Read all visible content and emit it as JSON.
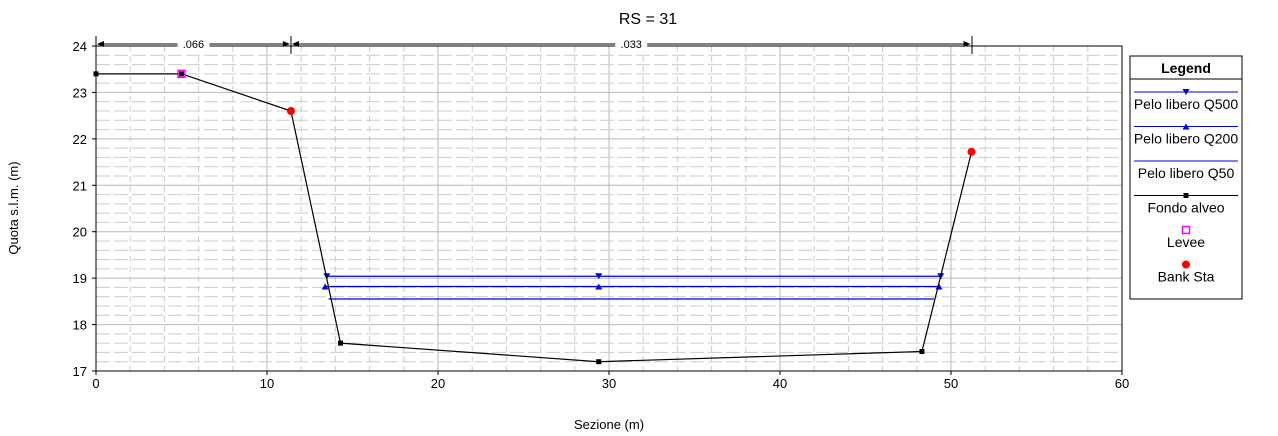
{
  "chart_data": {
    "type": "line",
    "title": "RS = 31",
    "xlabel": "Sezione (m)",
    "ylabel": "Quota s.l.m. (m)",
    "xlim": [
      0,
      60
    ],
    "ylim": [
      17,
      24
    ],
    "xticks": [
      0,
      10,
      20,
      30,
      40,
      50,
      60
    ],
    "yticks": [
      17,
      18,
      19,
      20,
      21,
      22,
      23,
      24
    ],
    "grid": true,
    "legend_position": "right",
    "legend_title": "Legend",
    "series": [
      {
        "name": "Pelo libero Q500",
        "color": "#0000e0",
        "marker": "triangle-down",
        "x": [
          13.5,
          29.4,
          49.4
        ],
        "y": [
          19.04,
          19.04,
          19.04
        ],
        "marker_x": [
          13.5,
          29.4,
          49.4
        ]
      },
      {
        "name": "Pelo libero Q200",
        "color": "#0000e0",
        "marker": "triangle-up",
        "x": [
          13.4,
          29.4,
          49.3
        ],
        "y": [
          18.82,
          18.82,
          18.82
        ],
        "marker_x": [
          13.4,
          29.4,
          49.3
        ]
      },
      {
        "name": "Pelo libero Q50",
        "color": "#0000e0",
        "marker": "none",
        "x": [
          13.6,
          49.0
        ],
        "y": [
          18.55,
          18.55
        ],
        "marker_x": []
      },
      {
        "name": "Fondo alveo",
        "color": "#000000",
        "marker": "square",
        "x": [
          0,
          5,
          11.4,
          14.3,
          29.4,
          48.3,
          51.2
        ],
        "y": [
          23.4,
          23.4,
          22.6,
          17.6,
          17.2,
          17.42,
          21.72
        ],
        "marker_x": [
          0,
          5,
          14.3,
          29.4,
          48.3
        ]
      },
      {
        "name": "Levee",
        "color": "#ff00ff",
        "marker": "square-open",
        "x": [],
        "y": [],
        "marker_x": [
          5
        ],
        "marker_y": [
          23.4
        ]
      },
      {
        "name": "Bank Sta",
        "color": "#ff0000",
        "marker": "circle",
        "x": [],
        "y": [],
        "marker_x": [
          11.4,
          51.2
        ],
        "marker_y": [
          22.6,
          21.72
        ]
      }
    ],
    "roughness": [
      {
        "from": 0,
        "to": 11.4,
        "label": ".066"
      },
      {
        "from": 11.4,
        "to": 51.2,
        "label": ".033"
      }
    ]
  }
}
